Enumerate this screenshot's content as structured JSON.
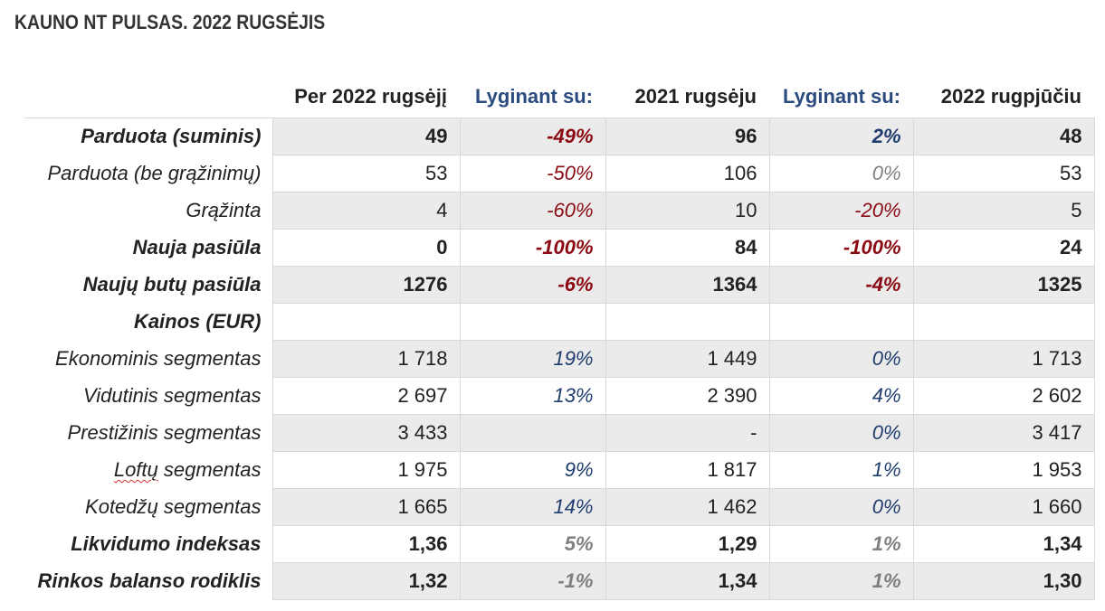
{
  "title": "KAUNO NT PULSAS. 2022 RUGSĖJIS",
  "headers": [
    "",
    "Per 2022 rugsėjį",
    "Lyginant su:",
    "2021 rugsėju",
    "Lyginant su:",
    "2022 rugpjūčiu"
  ],
  "rows": [
    {
      "label": "Parduota (suminis)",
      "bold": true,
      "shade": true,
      "cells": [
        "49",
        "-49%",
        "96",
        "2%",
        "48"
      ]
    },
    {
      "label": "Parduota (be grąžinimų)",
      "bold": false,
      "shade": false,
      "cells": [
        "53",
        "-50%",
        "106",
        "0%",
        "53"
      ]
    },
    {
      "label": "Grąžinta",
      "bold": false,
      "shade": true,
      "cells": [
        "4",
        "-60%",
        "10",
        "-20%",
        "5"
      ]
    },
    {
      "label": "Nauja pasiūla",
      "bold": true,
      "shade": false,
      "cells": [
        "0",
        "-100%",
        "84",
        "-100%",
        "24"
      ]
    },
    {
      "label": "Naujų butų pasiūla",
      "bold": true,
      "shade": true,
      "cells": [
        "1276",
        "-6%",
        "1364",
        "-4%",
        "1325"
      ]
    },
    {
      "label": "Kainos (EUR)",
      "bold": true,
      "shade": false,
      "cells": [
        "",
        "",
        "",
        "",
        ""
      ]
    },
    {
      "label": "Ekonominis segmentas",
      "bold": false,
      "shade": true,
      "cells": [
        "1 718",
        "19%",
        "1 449",
        "0%",
        "1 713"
      ]
    },
    {
      "label": "Vidutinis segmentas",
      "bold": false,
      "shade": false,
      "cells": [
        "2 697",
        "13%",
        "2 390",
        "4%",
        "2 602"
      ]
    },
    {
      "label": "Prestižinis segmentas",
      "bold": false,
      "shade": true,
      "cells": [
        "3 433",
        "",
        "-",
        "0%",
        "3 417"
      ]
    },
    {
      "label_parts": [
        "Loftų",
        " segmentas"
      ],
      "bold": false,
      "shade": false,
      "cells": [
        "1 975",
        "9%",
        "1 817",
        "1%",
        "1 953"
      ]
    },
    {
      "label": "Kotedžų segmentas",
      "bold": false,
      "shade": true,
      "cells": [
        "1 665",
        "14%",
        "1 462",
        "0%",
        "1 660"
      ]
    },
    {
      "label": "Likvidumo indeksas",
      "bold": true,
      "shade": false,
      "cells": [
        "1,36",
        "5%",
        "1,29",
        "1%",
        "1,34"
      ]
    },
    {
      "label": "Rinkos balanso rodiklis",
      "bold": true,
      "shade": true,
      "cells": [
        "1,32",
        "-1%",
        "1,34",
        "1%",
        "1,30"
      ]
    }
  ],
  "colors": {
    "negative": "#8b0a12",
    "positive": "#1f3c6e",
    "muted": "#7f7f7f",
    "header_accent": "#2b4a7e",
    "shade": "#ebebeb"
  }
}
